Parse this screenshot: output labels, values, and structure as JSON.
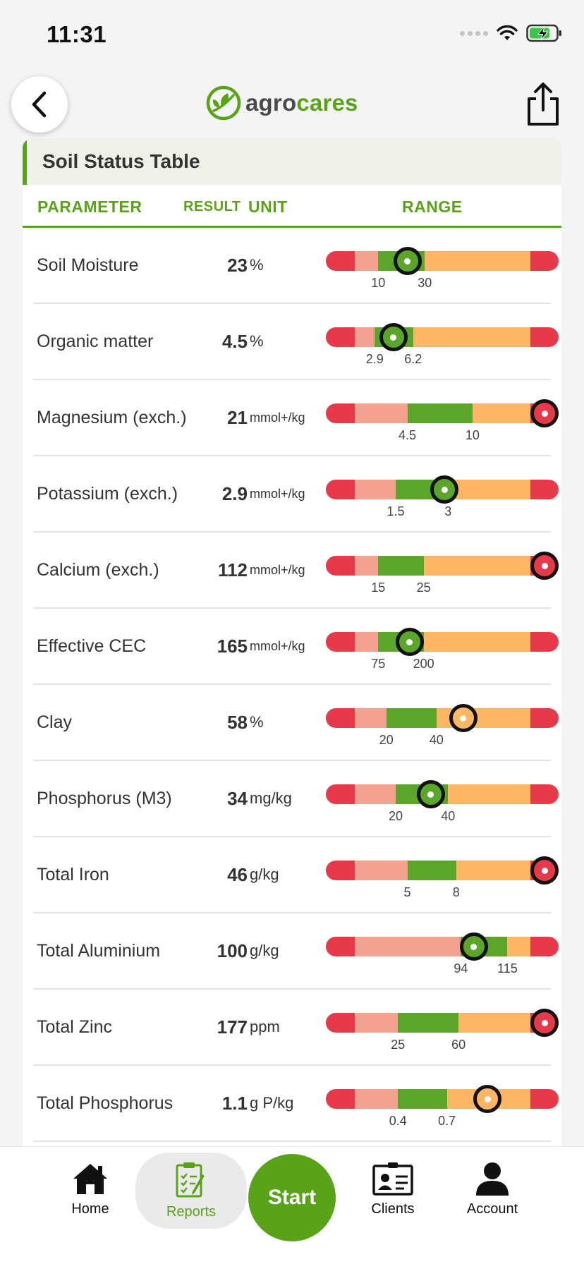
{
  "status": {
    "time": "11:31"
  },
  "header": {
    "logo_agro": "agro",
    "logo_cares": "cares"
  },
  "section": {
    "title": "Soil Status Table"
  },
  "columns": {
    "parameter": "PARAMETER",
    "result": "RESULT",
    "unit": "UNIT",
    "range": "RANGE"
  },
  "rows": [
    {
      "name": "Soil Moisture",
      "result": "23",
      "unit": "%",
      "lo": "10",
      "hi": "30",
      "value": 23
    },
    {
      "name": "Organic matter",
      "result": "4.5",
      "unit": "%",
      "lo": "2.9",
      "hi": "6.2",
      "value": 4.5
    },
    {
      "name": "Magnesium (exch.)",
      "result": "21",
      "unit": "mmol+/kg",
      "lo": "4.5",
      "hi": "10",
      "value": 21
    },
    {
      "name": "Potassium (exch.)",
      "result": "2.9",
      "unit": "mmol+/kg",
      "lo": "1.5",
      "hi": "3",
      "value": 2.9
    },
    {
      "name": "Calcium (exch.)",
      "result": "112",
      "unit": "mmol+/kg",
      "lo": "15",
      "hi": "25",
      "value": 112
    },
    {
      "name": "Effective CEC",
      "result": "165",
      "unit": "mmol+/kg",
      "lo": "75",
      "hi": "200",
      "value": 165
    },
    {
      "name": "Clay",
      "result": "58",
      "unit": "%",
      "lo": "20",
      "hi": "40",
      "value": 58
    },
    {
      "name": "Phosphorus (M3)",
      "result": "34",
      "unit": "mg/kg",
      "lo": "20",
      "hi": "40",
      "value": 34
    },
    {
      "name": "Total Iron",
      "result": "46",
      "unit": "g/kg",
      "lo": "5",
      "hi": "8",
      "value": 46
    },
    {
      "name": "Total Aluminium",
      "result": "100",
      "unit": "g/kg",
      "lo": "94",
      "hi": "115",
      "value": 100
    },
    {
      "name": "Total Zinc",
      "result": "177",
      "unit": "ppm",
      "lo": "25",
      "hi": "60",
      "value": 177
    },
    {
      "name": "Total Phosphorus",
      "result": "1.1",
      "unit": "g P/kg",
      "lo": "0.4",
      "hi": "0.7",
      "value": 1.1
    }
  ],
  "colors": {
    "brand": "#59a318",
    "very_low": "#e8394a",
    "low": "#f3a28f",
    "optimal": "#5aa52a",
    "high": "#fdb664",
    "marker_border": "#111111"
  },
  "tabs": {
    "home": "Home",
    "reports": "Reports",
    "start": "Start",
    "clients": "Clients",
    "account": "Account"
  }
}
